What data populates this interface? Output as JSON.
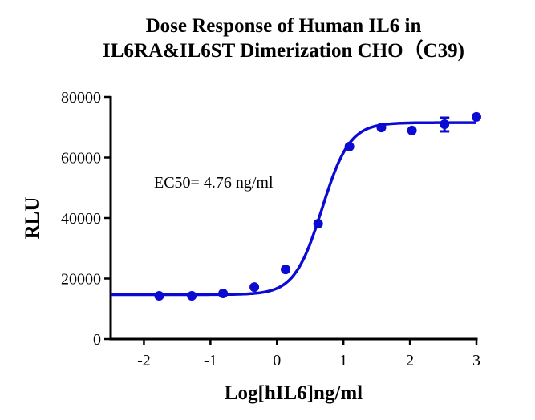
{
  "chart_data": {
    "type": "scatter",
    "title": "Dose Response of Human IL6 in IL6RA&IL6ST Dimerization CHO（C39)",
    "title_lines": [
      "Dose Response of Human IL6 in",
      "IL6RA&IL6ST Dimerization CHO（C39)"
    ],
    "xlabel": "Log[hIL6]ng/ml",
    "ylabel": "RLU",
    "xlim": [
      -2.5,
      3
    ],
    "ylim": [
      0,
      80000
    ],
    "x_ticks": [
      -2,
      -1,
      0,
      1,
      2,
      3
    ],
    "y_ticks": [
      0,
      20000,
      40000,
      60000,
      80000
    ],
    "grid": false,
    "legend": null,
    "annotation": "EC50= 4.76 ng/ml",
    "series": [
      {
        "name": "hIL6",
        "color": "#0a0ad2",
        "marker": "circle",
        "x": [
          -1.77,
          -1.28,
          -0.81,
          -0.34,
          0.13,
          0.62,
          1.09,
          1.57,
          2.03,
          2.52,
          3.0
        ],
        "y": [
          14300,
          14300,
          15100,
          17200,
          23000,
          38100,
          63600,
          69900,
          68900,
          71000,
          73400
        ],
        "fit": {
          "type": "4PL",
          "bottom": 14700,
          "top": 71500,
          "log_ec50": 0.678,
          "hill": 2.1
        }
      }
    ]
  }
}
